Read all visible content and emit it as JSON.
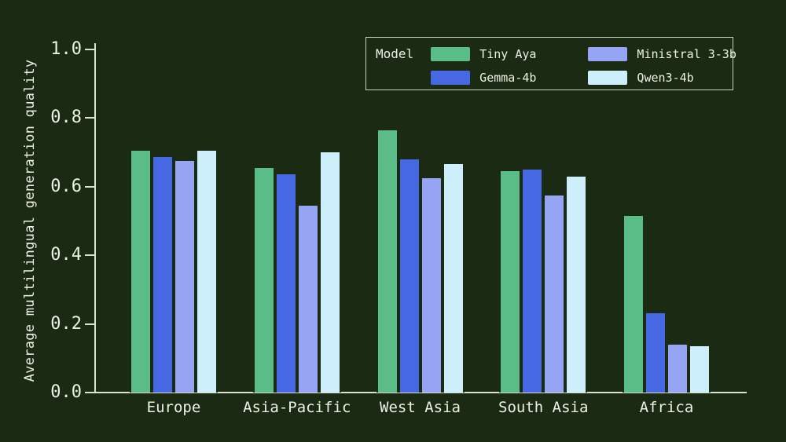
{
  "colors": {
    "background": "#1b2a12",
    "text": "#edf2e6",
    "axis": "#dce2d2",
    "legend_border": "#cdd4c3"
  },
  "chart_data": {
    "type": "bar",
    "title": "",
    "xlabel": "",
    "ylabel": "Average multilingual generation quality",
    "ylim": [
      0.0,
      1.0
    ],
    "yticks": [
      0.0,
      0.2,
      0.4,
      0.6,
      0.8,
      1.0
    ],
    "grid": false,
    "legend_title": "Model",
    "legend_position": "top-right",
    "categories": [
      "Europe",
      "Asia-Pacific",
      "West Asia",
      "South Asia",
      "Africa"
    ],
    "series": [
      {
        "name": "Tiny Aya",
        "color": "#5abc86",
        "values": [
          0.71,
          0.66,
          0.77,
          0.65,
          0.52
        ]
      },
      {
        "name": "Gemma-4b",
        "color": "#4668e2",
        "values": [
          0.69,
          0.64,
          0.685,
          0.655,
          0.235
        ]
      },
      {
        "name": "Ministral 3-3b",
        "color": "#96a5f3",
        "values": [
          0.68,
          0.55,
          0.63,
          0.58,
          0.145
        ]
      },
      {
        "name": "Qwen3-4b",
        "color": "#cdeefb",
        "values": [
          0.71,
          0.705,
          0.67,
          0.635,
          0.14
        ]
      }
    ]
  }
}
